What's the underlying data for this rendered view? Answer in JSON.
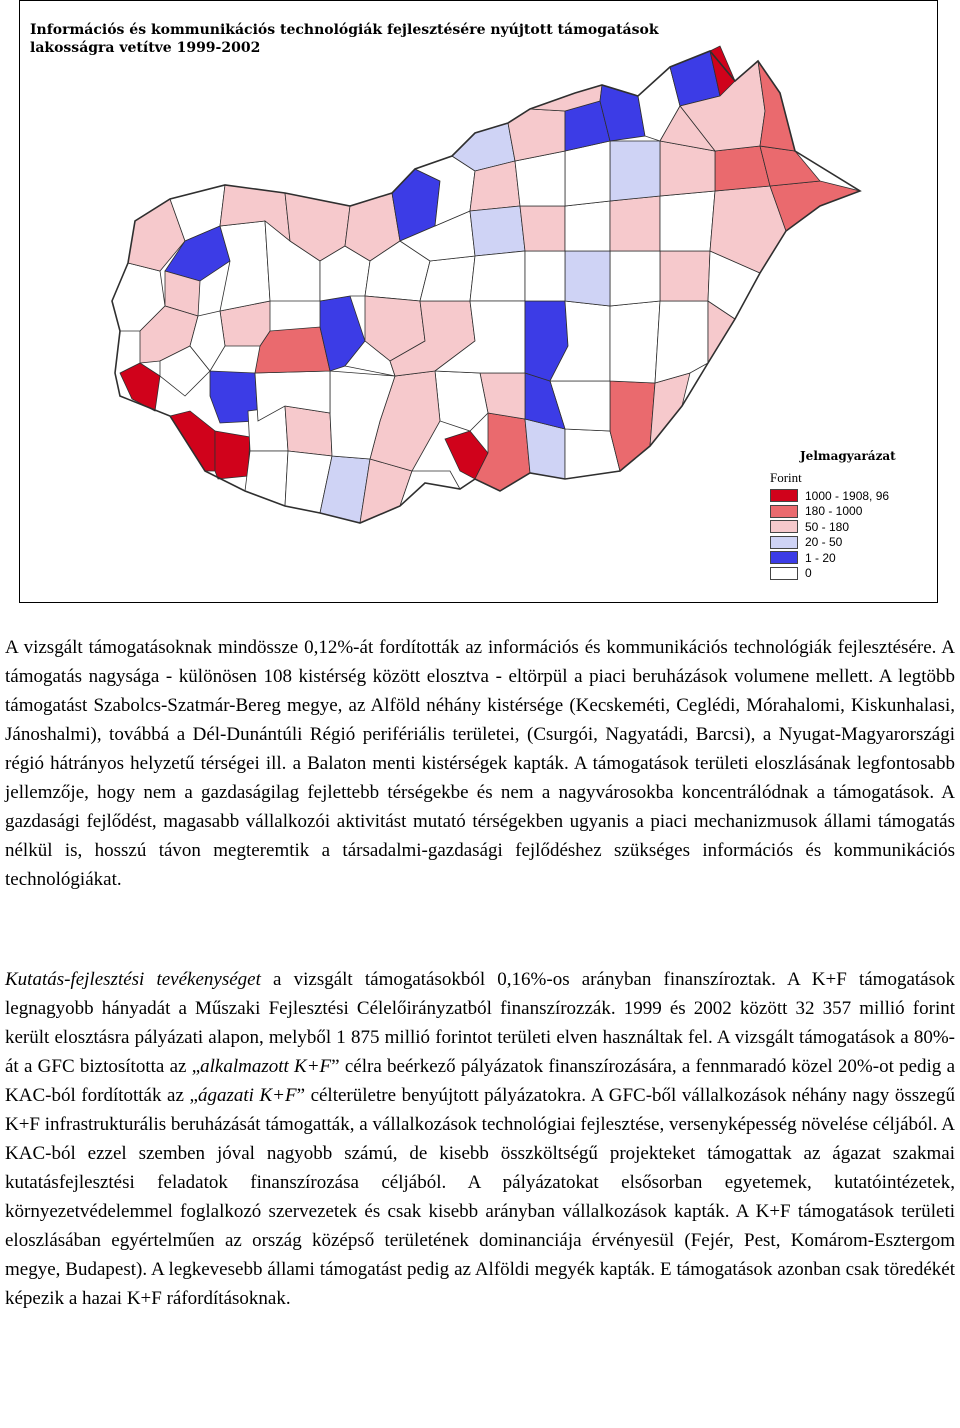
{
  "map": {
    "title_line1": "Információs és kommunikációs technológiák fejlesztésére nyújtott támogatások",
    "title_line2": "lakosságra vetítve 1999-2002",
    "colors": {
      "c1": "#d0021b",
      "c2": "#ea6a6e",
      "c3": "#f6c9cc",
      "c4": "#cfd3f5",
      "c5": "#3c3ce6",
      "c6": "#ffffff",
      "border": "#2f2f2f"
    }
  },
  "legend": {
    "title": "Jelmagyarázat",
    "unit": "Forint",
    "items": [
      {
        "label": "1000 - 1908, 96",
        "color": "#d0021b"
      },
      {
        "label": "180 - 1000",
        "color": "#ea6a6e"
      },
      {
        "label": "50 - 180",
        "color": "#f6c9cc"
      },
      {
        "label": "20 - 50",
        "color": "#cfd3f5"
      },
      {
        "label": "1 - 20",
        "color": "#3c3ce6"
      },
      {
        "label": "0",
        "color": "#ffffff"
      }
    ]
  },
  "paragraph1": {
    "s1": "A vizsgált támogatásoknak mindössze 0,12%-át fordították az információs és kommunikációs technológiák fejlesztésére. A támogatás nagysága - különösen 108 kistérség között elosztva - eltörpül a piaci beruházások volumene mellett. A legtöbb támogatást Szabolcs-Szatmár-Bereg megye, az Alföld néhány kistérsége (Kecskeméti, Ceglédi, Mórahalomi, Kiskunhalasi, Jánoshalmi), továbbá a Dél-Dunántúli Régió perifériális területei, (Csurgói, Nagyatádi, Barcsi), a Nyugat-Magyarországi régió hátrányos helyzetű térségei ill. a Balaton menti kistérségek kapták. A támogatások területi eloszlásának legfontosabb jellemzője, hogy nem a gazdaságilag fejlettebb térségekbe és nem a nagyvárosokba koncentrálódnak a támogatások. A gazdasági fejlődést, magasabb vállalkozói aktivitást mutató térségekben ugyanis a piaci mechanizmusok állami támogatás nélkül is, hosszú távon megteremtik a társadalmi-gazdasági fejlődéshez szükséges információs és kommunikációs technológiákat."
  },
  "paragraph2": {
    "italic_lead": "Kutatás-fejlesztési tevékenységet",
    "t1": " a vizsgált támogatásokból 0,16%-os arányban finanszíroztak. A K+F támogatások legnagyobb hányadát a Műszaki Fejlesztési Célelőirányzatból finanszírozzák. 1999 és 2002 között 32 357 millió forint került elosztásra pályázati alapon, melyből 1 875 millió forintot területi elven használtak fel. A vizsgált támogatások a 80%-át a GFC biztosította az „",
    "italic_1": "alkalmazott K+F",
    "t2": "” célra beérkező pályázatok finanszírozására, a fennmaradó közel 20%-ot pedig a KAC-ból fordították az „",
    "italic_2": "ágazati K+F",
    "t3": "” célterületre benyújtott pályázatokra. A GFC-ből vállalkozások néhány nagy összegű K+F infrastrukturális beruházását támogatták, a vállalkozások technológiai fejlesztése, versenyképesség növelése céljából. A KAC-ból ezzel szemben jóval nagyobb számú, de kisebb összköltségű projekteket támogattak az ágazat szakmai kutatásfejlesztési feladatok finanszírozása céljából. A pályázatokat elsősorban egyetemek, kutatóintézetek, környezetvédelemmel foglalkozó szervezetek és csak kisebb arányban vállalkozások kapták. A K+F támogatások területi eloszlásában egyértelműen az ország középső területének dominanciája érvényesül (Fejér, Pest, Komárom-Esztergom megye, Budapest). A legkevesebb állami támogatást pedig az Alföldi megyék kapták. E támogatások azonban csak töredékét képezik a hazai K+F ráfordításoknak."
  }
}
